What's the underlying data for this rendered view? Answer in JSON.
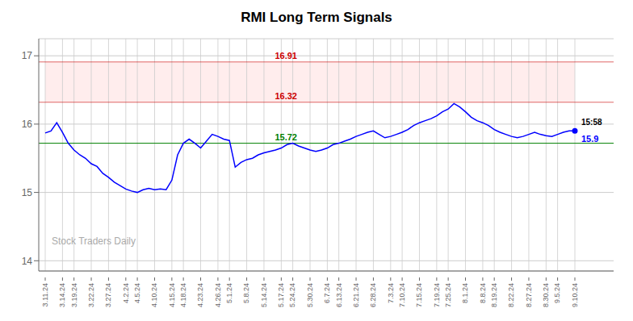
{
  "chart_data": {
    "type": "line",
    "title": "RMI Long Term Signals",
    "color": "blue",
    "categories": [
      "3.11.24",
      null,
      null,
      "3.14.24",
      null,
      "3.19.24",
      null,
      null,
      "3.22.24",
      null,
      null,
      "3.27.24",
      null,
      null,
      "4.2.24",
      null,
      "4.5.24",
      null,
      null,
      "4.10.24",
      null,
      null,
      "4.15.24",
      null,
      "4.18.24",
      null,
      null,
      "4.23.24",
      null,
      null,
      "4.26.24",
      null,
      "5.1.24",
      null,
      null,
      "5.8.24",
      null,
      null,
      "5.14.24",
      null,
      null,
      "5.17.24",
      null,
      "5.24.24",
      null,
      null,
      "5.30.24",
      null,
      null,
      "6.7.24",
      null,
      "6.13.24",
      null,
      null,
      "6.21.24",
      null,
      null,
      "6.28.24",
      null,
      null,
      "7.3.24",
      null,
      "7.10.24",
      null,
      null,
      "7.15.24",
      null,
      null,
      "7.19.24",
      null,
      "7.25.24",
      null,
      null,
      "8.1.24",
      null,
      null,
      "8.8.24",
      null,
      "8.19.24",
      null,
      null,
      "8.22.24",
      null,
      null,
      "8.27.24",
      null,
      null,
      "8.30.24",
      null,
      "9.5.24",
      null,
      null,
      "9.10.24"
    ],
    "values": [
      15.87,
      15.9,
      16.02,
      15.88,
      15.72,
      15.62,
      15.55,
      15.5,
      15.42,
      15.38,
      15.28,
      15.22,
      15.15,
      15.1,
      15.05,
      15.02,
      15.0,
      15.04,
      15.06,
      15.04,
      15.05,
      15.04,
      15.18,
      15.55,
      15.72,
      15.78,
      15.72,
      15.65,
      15.75,
      15.85,
      15.82,
      15.78,
      15.76,
      15.37,
      15.44,
      15.48,
      15.5,
      15.55,
      15.58,
      15.6,
      15.62,
      15.65,
      15.7,
      15.72,
      15.68,
      15.65,
      15.62,
      15.6,
      15.62,
      15.65,
      15.7,
      15.72,
      15.75,
      15.78,
      15.82,
      15.85,
      15.88,
      15.9,
      15.85,
      15.8,
      15.82,
      15.85,
      15.88,
      15.92,
      15.98,
      16.02,
      16.05,
      16.08,
      16.12,
      16.18,
      16.22,
      16.3,
      16.25,
      16.18,
      16.1,
      16.05,
      16.02,
      15.98,
      15.92,
      15.88,
      15.85,
      15.82,
      15.8,
      15.82,
      15.85,
      15.88,
      15.85,
      15.83,
      15.82,
      15.85,
      15.88,
      15.9,
      15.9
    ],
    "ylim": [
      13.85,
      17.25
    ],
    "yticks": [
      14,
      15,
      16,
      17
    ],
    "grid": true,
    "reference_lines": [
      {
        "value": 15.72,
        "label": "15.72",
        "color": "green"
      },
      {
        "value": 16.91,
        "label": "16.91",
        "color": "#cc0000"
      },
      {
        "value": 16.32,
        "label": "16.32",
        "color": "#cc0000"
      }
    ],
    "band": {
      "from": 16.32,
      "to": 16.91,
      "color": "#ffcccc"
    },
    "endpoint": {
      "value": 15.9,
      "label": "15.9",
      "time_label": "15:58"
    },
    "watermark": "Stock Traders Daily"
  }
}
